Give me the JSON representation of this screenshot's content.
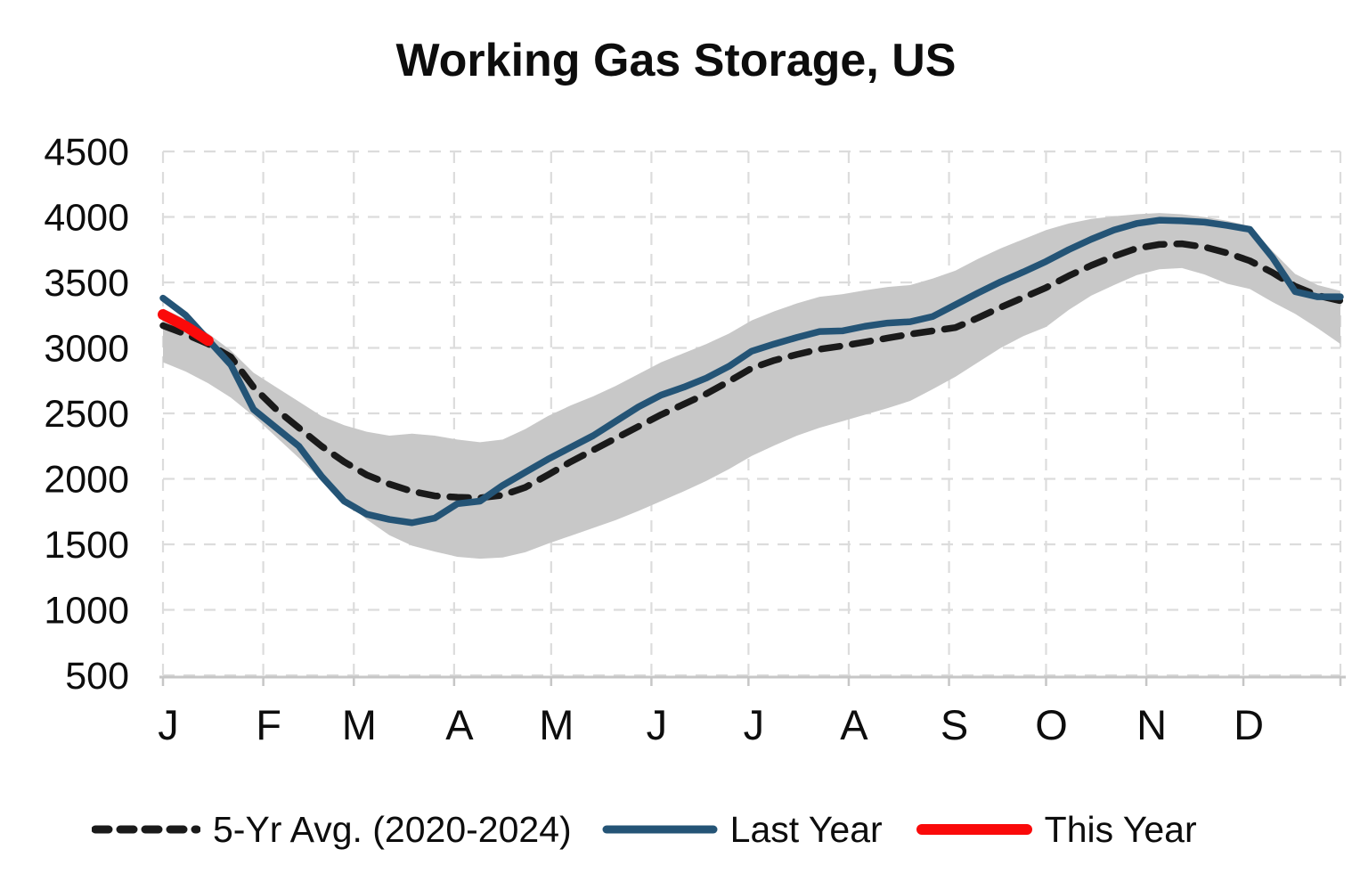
{
  "title": "Working Gas Storage, US",
  "legend": {
    "avg_label": "5-Yr Avg. (2020-2024)",
    "last_year_label": "Last Year",
    "this_year_label": "This Year"
  },
  "colors": {
    "avg_line": "#1a1a1a",
    "last_year_line": "#245476",
    "this_year_line": "#fa0a0a",
    "band_fill": "#c8c8c8",
    "grid_line": "#dcdcdc",
    "axis_line": "#c6c6c6",
    "text": "#0d0d0d"
  },
  "chart_data": {
    "type": "line",
    "title": "Working Gas Storage, US",
    "xlabel": "",
    "ylabel": "",
    "x_unit": "day-of-year",
    "ylim": [
      500,
      4500
    ],
    "y_ticks": [
      4500,
      4000,
      3500,
      3000,
      2500,
      2000,
      1500,
      1000,
      500
    ],
    "grid": true,
    "legend_position": "bottom",
    "month_labels": [
      "J",
      "F",
      "M",
      "A",
      "M",
      "J",
      "J",
      "A",
      "S",
      "O",
      "N",
      "D"
    ],
    "month_start_days": [
      0,
      31,
      59,
      90,
      120,
      151,
      181,
      212,
      243,
      273,
      304,
      334
    ],
    "week_days": [
      0,
      7,
      14,
      21,
      28,
      35,
      42,
      49,
      56,
      63,
      70,
      77,
      84,
      91,
      98,
      105,
      112,
      119,
      126,
      133,
      140,
      147,
      154,
      161,
      168,
      175,
      182,
      189,
      196,
      203,
      210,
      217,
      224,
      231,
      238,
      245,
      252,
      259,
      266,
      273,
      280,
      287,
      294,
      301,
      308,
      315,
      322,
      329,
      336,
      343,
      350,
      357,
      364
    ],
    "band": {
      "name": "5-yr-range",
      "top": [
        3300,
        3220,
        3110,
        2980,
        2810,
        2700,
        2590,
        2480,
        2410,
        2360,
        2330,
        2345,
        2330,
        2300,
        2280,
        2300,
        2380,
        2480,
        2560,
        2630,
        2710,
        2800,
        2890,
        2960,
        3030,
        3110,
        3210,
        3280,
        3340,
        3390,
        3410,
        3440,
        3465,
        3480,
        3530,
        3590,
        3680,
        3760,
        3830,
        3900,
        3950,
        3985,
        4005,
        4020,
        4030,
        4020,
        4000,
        3970,
        3930,
        3740,
        3565,
        3480,
        3435
      ],
      "bottom": [
        2890,
        2820,
        2730,
        2620,
        2480,
        2320,
        2160,
        1990,
        1830,
        1690,
        1570,
        1490,
        1445,
        1405,
        1390,
        1400,
        1440,
        1505,
        1565,
        1625,
        1685,
        1755,
        1830,
        1905,
        1985,
        2075,
        2175,
        2255,
        2330,
        2390,
        2440,
        2490,
        2540,
        2595,
        2685,
        2780,
        2890,
        3000,
        3090,
        3160,
        3290,
        3400,
        3480,
        3555,
        3600,
        3610,
        3560,
        3490,
        3450,
        3350,
        3260,
        3150,
        3030
      ]
    },
    "series": [
      {
        "name": "5-Yr Avg. (2020-2024)",
        "dash": true,
        "values": [
          3170,
          3105,
          3030,
          2930,
          2700,
          2530,
          2390,
          2250,
          2130,
          2030,
          1960,
          1905,
          1870,
          1860,
          1855,
          1875,
          1935,
          2030,
          2130,
          2220,
          2310,
          2400,
          2490,
          2570,
          2650,
          2745,
          2845,
          2905,
          2950,
          2990,
          3015,
          3045,
          3075,
          3105,
          3130,
          3155,
          3230,
          3310,
          3385,
          3460,
          3550,
          3630,
          3700,
          3760,
          3790,
          3795,
          3770,
          3725,
          3665,
          3575,
          3470,
          3400,
          3360
        ]
      },
      {
        "name": "Last Year",
        "dash": false,
        "values": [
          3380,
          3250,
          3060,
          2870,
          2530,
          2390,
          2250,
          2020,
          1830,
          1730,
          1690,
          1665,
          1700,
          1810,
          1830,
          1950,
          2050,
          2150,
          2240,
          2330,
          2440,
          2550,
          2640,
          2700,
          2770,
          2860,
          2975,
          3030,
          3080,
          3125,
          3130,
          3165,
          3190,
          3200,
          3240,
          3330,
          3420,
          3505,
          3580,
          3660,
          3750,
          3830,
          3900,
          3950,
          3975,
          3970,
          3960,
          3935,
          3905,
          3690,
          3430,
          3390,
          3390
        ]
      },
      {
        "name": "This Year",
        "dash": false,
        "thick": true,
        "days": [
          0,
          7,
          14
        ],
        "values": [
          3255,
          3165,
          3055
        ]
      }
    ]
  }
}
